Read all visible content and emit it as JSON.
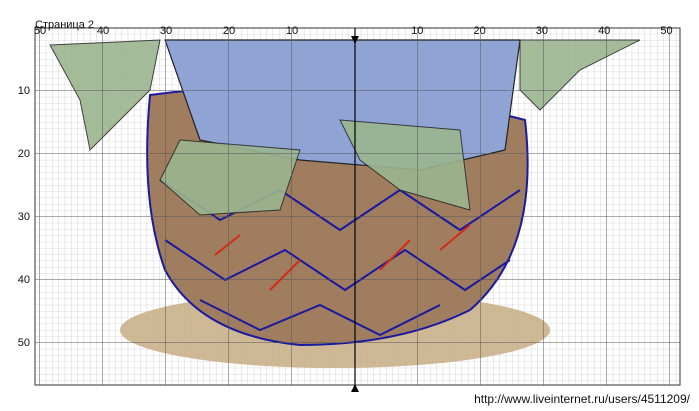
{
  "header": {
    "title": "Страница 2"
  },
  "top_ruler": {
    "labels": [
      "50",
      "40",
      "30",
      "20",
      "10",
      "10",
      "20",
      "30",
      "40",
      "50"
    ]
  },
  "left_ruler": {
    "labels": [
      "10",
      "20",
      "30",
      "40",
      "50"
    ]
  },
  "footer": {
    "url": "http://www.liveinternet.ru/users/4511209/"
  }
}
